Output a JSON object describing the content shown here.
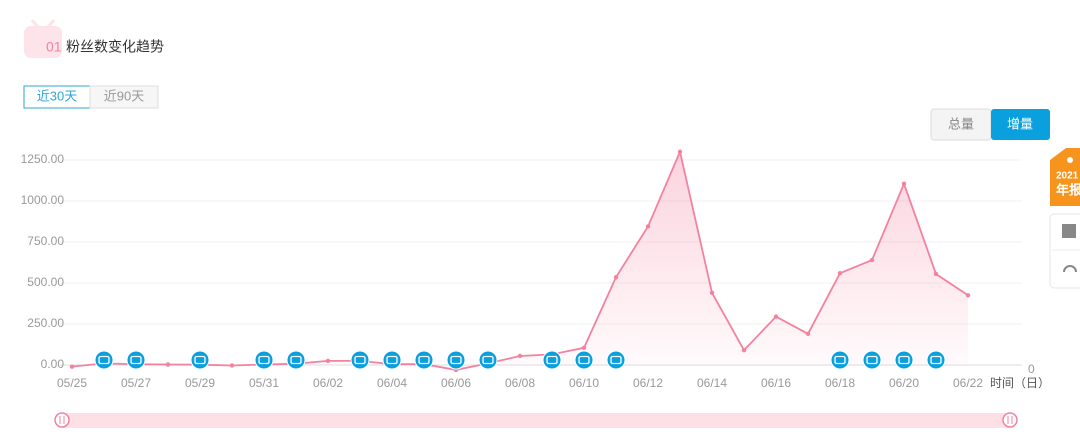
{
  "header": {
    "number": "01",
    "title": "粉丝数变化趋势"
  },
  "tabs": [
    "近30天",
    "近90天"
  ],
  "toggle": [
    "总量",
    "增量"
  ],
  "side": {
    "badge_year": "2021",
    "badge_text": "年报"
  },
  "chart_data": {
    "type": "line",
    "area": true,
    "color": "#f4829f",
    "grid": true,
    "categories": [
      "05/25",
      null,
      "05/27",
      null,
      "05/29",
      null,
      "05/31",
      null,
      "06/02",
      null,
      "06/04",
      null,
      "06/06",
      null,
      "06/08",
      null,
      "06/10",
      null,
      "06/12",
      null,
      "06/14",
      null,
      "06/16",
      null,
      "06/18",
      null,
      "06/20",
      null,
      "06/22"
    ],
    "values": [
      -10,
      10,
      5,
      3,
      2,
      -3,
      3,
      8,
      25,
      25,
      5,
      5,
      -30,
      10,
      55,
      65,
      105,
      535,
      845,
      1300,
      440,
      90,
      295,
      190,
      560,
      640,
      1105,
      555,
      425
    ],
    "ylim": [
      0,
      1250
    ],
    "yticks": [
      {
        "value": 0,
        "label": "0.00"
      },
      {
        "value": 250,
        "label": "250.00"
      },
      {
        "value": 500,
        "label": "500.00"
      },
      {
        "value": 750,
        "label": "750.00"
      },
      {
        "value": 1000,
        "label": "1000.00"
      },
      {
        "value": 1250,
        "label": "1250.00"
      }
    ],
    "y2ticks": [
      0
    ],
    "xlabel": "时间（日）",
    "video_markers": [
      1,
      2,
      4,
      6,
      7,
      9,
      10,
      11,
      12,
      13,
      15,
      16,
      17,
      24,
      25,
      26,
      27
    ]
  }
}
